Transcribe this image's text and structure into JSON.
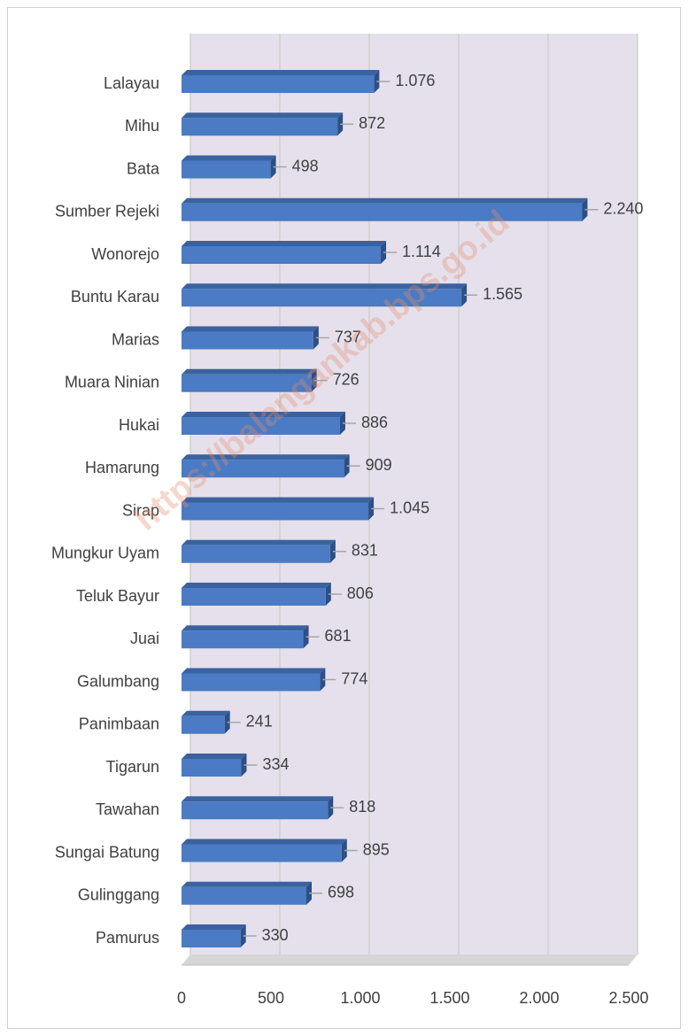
{
  "chart_data": {
    "type": "bar3d_horizontal",
    "categories": [
      "Lalayau",
      "Mihu",
      "Bata",
      "Sumber Rejeki",
      "Wonorejo",
      "Buntu Karau",
      "Marias",
      "Muara Ninian",
      "Hukai",
      "Hamarung",
      "Sirap",
      "Mungkur Uyam",
      "Teluk Bayur",
      "Juai",
      "Galumbang",
      "Panimbaan",
      "Tigarun",
      "Tawahan",
      "Sungai Batung",
      "Gulinggang",
      "Pamurus"
    ],
    "values": [
      1076,
      872,
      498,
      2240,
      1114,
      1565,
      737,
      726,
      886,
      909,
      1045,
      831,
      806,
      681,
      774,
      241,
      334,
      818,
      895,
      698,
      330
    ],
    "value_labels": [
      "1.076",
      "872",
      "498",
      "2.240",
      "1.114",
      "1.565",
      "737",
      "726",
      "886",
      "909",
      "1.045",
      "831",
      "806",
      "681",
      "774",
      "241",
      "334",
      "818",
      "895",
      "698",
      "330"
    ],
    "color": "#4a7bc4",
    "xlim": [
      0,
      2500
    ],
    "xticks": [
      0,
      500,
      {
        "value": 1000,
        "label": "1.000"
      },
      {
        "value": 1500,
        "label": "1.500"
      },
      {
        "value": 2000,
        "label": "2.000"
      },
      {
        "value": 2500,
        "label": "2.500"
      }
    ],
    "grid": true
  },
  "watermark": "https://balangankab.bps.go.id"
}
